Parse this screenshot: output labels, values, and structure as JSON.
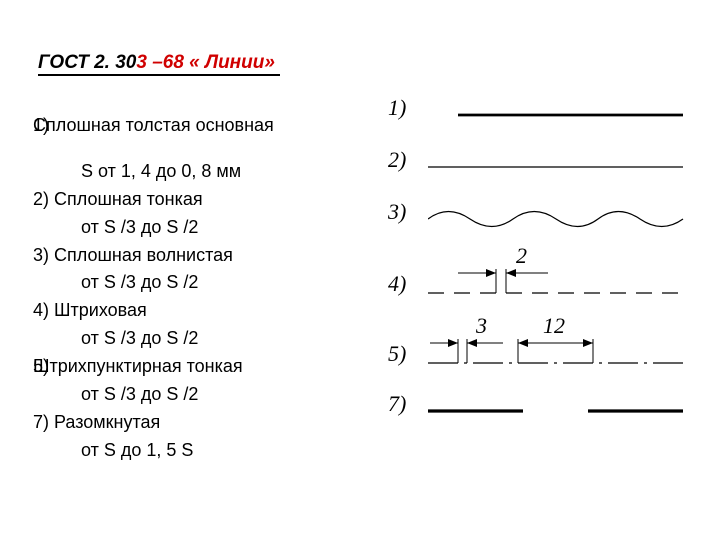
{
  "header": {
    "gost_prefix": "ГОСТ 2. 30",
    "gost_accent": "3 –68  « Линии»"
  },
  "text": {
    "item1_num": "1)",
    "item1_label": "Сплошная толстая основная",
    "item1_range": "S  от 1, 4 до 0, 8 мм",
    "item2": "2) Сплошная тонкая",
    "item2_range": "от S /3  до  S /2",
    "item3": "3) Сплошная  волнистая",
    "item3_range": "от S /3  до  S /2",
    "item4": "4) Штриховая",
    "item4_range": "от S /3  до  S /2",
    "item5_num": "5)",
    "item5_label": "Штрихпунктирная тонкая",
    "item5_range": "от S /3  до  S /2",
    "item7": "7) Разомкнутая",
    "item7_range": "от S   до  1, 5 S"
  },
  "diagram": {
    "labels": {
      "r1": "1)",
      "r2": "2)",
      "r3": "3)",
      "r4": "4)",
      "r5": "5)",
      "r7": "7)"
    },
    "dims": {
      "d2": "2",
      "d3": "3",
      "d12": "12"
    },
    "style": {
      "stroke": "#000000",
      "thin_width": 1.2,
      "thick_width": 2.8,
      "open_width": 3.2
    },
    "row_y": {
      "r1": 0,
      "r2": 52,
      "r3": 104,
      "r4": 156,
      "r5": 226,
      "r7": 296
    }
  }
}
